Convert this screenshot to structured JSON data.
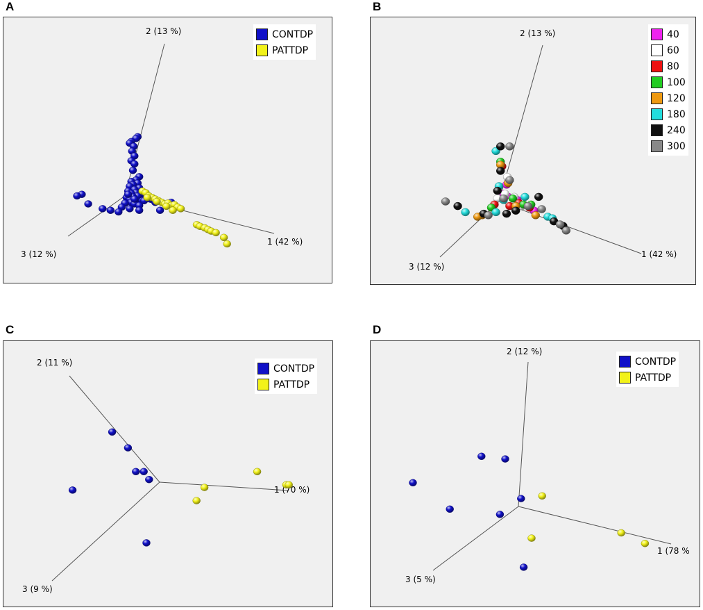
{
  "chart_data": [
    {
      "type": "scatter",
      "panel": "A",
      "title": "",
      "axes": [
        {
          "id": "1",
          "label": "1 (42 %)"
        },
        {
          "id": "2",
          "label": "2 (13 %)"
        },
        {
          "id": "3",
          "label": "3 (12 %)"
        }
      ],
      "legend": [
        {
          "name": "CONTDP",
          "color": "#1010c8"
        },
        {
          "name": "PATTDP",
          "color": "#f2f21a"
        }
      ],
      "series": [
        {
          "name": "CONTDP",
          "color": "#1010c8",
          "points": [
            [
              0.8,
              -3.7
            ],
            [
              0.7,
              -3.6
            ],
            [
              0.4,
              -3.4
            ],
            [
              0.3,
              -3.3
            ],
            [
              0.55,
              -3.1
            ],
            [
              0.45,
              -2.8
            ],
            [
              0.6,
              -2.5
            ],
            [
              0.4,
              -2.2
            ],
            [
              0.6,
              -2.0
            ],
            [
              0.5,
              -1.6
            ],
            [
              0.9,
              -1.2
            ],
            [
              0.7,
              -1.0
            ],
            [
              0.4,
              -0.9
            ],
            [
              0.8,
              -0.8
            ],
            [
              0.5,
              -0.7
            ],
            [
              0.3,
              -0.6
            ],
            [
              0.9,
              -0.5
            ],
            [
              0.6,
              -0.4
            ],
            [
              0.2,
              -0.3
            ],
            [
              0.7,
              -0.2
            ],
            [
              0.4,
              -0.15
            ],
            [
              1.0,
              -0.1
            ],
            [
              0.8,
              0.0
            ],
            [
              0.5,
              0.05
            ],
            [
              0.1,
              0.1
            ],
            [
              0.3,
              0.2
            ],
            [
              0.7,
              0.25
            ],
            [
              1.1,
              0.3
            ],
            [
              0.4,
              0.4
            ],
            [
              0.0,
              0.45
            ],
            [
              0.6,
              0.5
            ],
            [
              0.9,
              0.6
            ],
            [
              1.2,
              0.3
            ],
            [
              1.6,
              0.2
            ],
            [
              1.9,
              0.4
            ],
            [
              2.9,
              0.4
            ],
            [
              2.2,
              0.9
            ],
            [
              0.9,
              0.9
            ],
            [
              0.3,
              0.8
            ],
            [
              -0.2,
              0.7
            ],
            [
              -0.4,
              1.0
            ],
            [
              -0.9,
              0.9
            ],
            [
              -1.4,
              0.8
            ],
            [
              -2.3,
              0.5
            ],
            [
              -2.7,
              -0.1
            ],
            [
              -3.0,
              0.0
            ],
            [
              0.6,
              0.2
            ],
            [
              0.2,
              -0.1
            ]
          ]
        },
        {
          "name": "PATTDP",
          "color": "#f2f21a",
          "points": [
            [
              1.1,
              -0.3
            ],
            [
              1.3,
              -0.2
            ],
            [
              1.5,
              0.0
            ],
            [
              1.7,
              0.1
            ],
            [
              1.9,
              0.2
            ],
            [
              2.1,
              0.3
            ],
            [
              2.3,
              0.4
            ],
            [
              2.5,
              0.5
            ],
            [
              2.7,
              0.45
            ],
            [
              2.9,
              0.6
            ],
            [
              3.1,
              0.55
            ],
            [
              3.3,
              0.7
            ],
            [
              3.5,
              0.8
            ],
            [
              1.4,
              0.1
            ],
            [
              2.0,
              0.35
            ],
            [
              2.6,
              0.65
            ],
            [
              3.0,
              0.9
            ],
            [
              4.5,
              1.8
            ],
            [
              4.7,
              1.9
            ],
            [
              5.0,
              2.0
            ],
            [
              5.2,
              2.1
            ],
            [
              5.4,
              2.2
            ],
            [
              5.7,
              2.3
            ],
            [
              6.2,
              2.6
            ],
            [
              6.4,
              3.0
            ]
          ]
        }
      ]
    },
    {
      "type": "scatter",
      "panel": "B",
      "title": "",
      "axes": [
        {
          "id": "1",
          "label": "1 (42 %)"
        },
        {
          "id": "2",
          "label": "2 (13 %)"
        },
        {
          "id": "3",
          "label": "3 (12 %)"
        }
      ],
      "legend": [
        {
          "name": "40",
          "color": "#ee22ee"
        },
        {
          "name": "60",
          "color": "#ffffff"
        },
        {
          "name": "80",
          "color": "#ee1111"
        },
        {
          "name": "100",
          "color": "#22cc22"
        },
        {
          "name": "120",
          "color": "#ee9911"
        },
        {
          "name": "180",
          "color": "#22dddd"
        },
        {
          "name": "240",
          "color": "#111111"
        },
        {
          "name": "300",
          "color": "#888888"
        }
      ],
      "series": [
        {
          "name": "40",
          "color": "#ee22ee",
          "points": [
            [
              0.5,
              -1.1
            ],
            [
              0.6,
              -0.3
            ],
            [
              1.2,
              -0.1
            ],
            [
              1.4,
              0.2
            ],
            [
              2.3,
              0.6
            ],
            [
              0.3,
              -0.5
            ]
          ]
        },
        {
          "name": "60",
          "color": "#ffffff",
          "points": [
            [
              0.55,
              -1.6
            ],
            [
              0.4,
              -0.5
            ],
            [
              0.8,
              0.0
            ],
            [
              1.5,
              0.3
            ],
            [
              -0.1,
              -0.2
            ],
            [
              1.0,
              -0.3
            ]
          ]
        },
        {
          "name": "80",
          "color": "#ee1111",
          "points": [
            [
              0.2,
              -2.3
            ],
            [
              0.7,
              0.3
            ],
            [
              1.3,
              0.1
            ],
            [
              2.0,
              0.4
            ],
            [
              -0.3,
              0.2
            ]
          ]
        },
        {
          "name": "100",
          "color": "#22cc22",
          "points": [
            [
              0.1,
              -2.6
            ],
            [
              0.9,
              -0.2
            ],
            [
              1.6,
              0.2
            ],
            [
              2.1,
              0.2
            ],
            [
              -0.5,
              0.4
            ]
          ]
        },
        {
          "name": "120",
          "color": "#ee9911",
          "points": [
            [
              0.1,
              -2.4
            ],
            [
              0.6,
              -1.2
            ],
            [
              1.1,
              0.3
            ],
            [
              2.4,
              0.9
            ],
            [
              -1.1,
              0.9
            ],
            [
              -1.4,
              1.0
            ]
          ]
        },
        {
          "name": "180",
          "color": "#22dddd",
          "points": [
            [
              -0.2,
              -3.3
            ],
            [
              0.0,
              -1.0
            ],
            [
              0.3,
              -0.1
            ],
            [
              1.7,
              -0.3
            ],
            [
              3.2,
              1.0
            ],
            [
              3.5,
              1.1
            ],
            [
              -0.2,
              0.7
            ],
            [
              -2.2,
              0.7
            ]
          ]
        },
        {
          "name": "240",
          "color": "#111111",
          "points": [
            [
              0.1,
              -3.6
            ],
            [
              0.1,
              -2.0
            ],
            [
              -0.1,
              -0.7
            ],
            [
              1.1,
              0.6
            ],
            [
              2.6,
              -0.3
            ],
            [
              3.6,
              1.3
            ],
            [
              4.2,
              1.6
            ],
            [
              -1.0,
              0.8
            ],
            [
              -2.7,
              0.3
            ],
            [
              0.5,
              0.8
            ]
          ]
        },
        {
          "name": "300",
          "color": "#888888",
          "points": [
            [
              0.7,
              -3.6
            ],
            [
              0.7,
              -1.4
            ],
            [
              0.3,
              -0.2
            ],
            [
              1.9,
              0.3
            ],
            [
              2.8,
              0.5
            ],
            [
              4.0,
              1.5
            ],
            [
              4.4,
              1.9
            ],
            [
              -0.7,
              0.9
            ],
            [
              -3.5,
              0.0
            ]
          ]
        }
      ]
    },
    {
      "type": "scatter",
      "panel": "C",
      "title": "",
      "axes": [
        {
          "id": "1",
          "label": "1 (70 %)"
        },
        {
          "id": "2",
          "label": "2 (11 %)"
        },
        {
          "id": "3",
          "label": "3 (9 %)"
        }
      ],
      "legend": [
        {
          "name": "CONTDP",
          "color": "#1010c8"
        },
        {
          "name": "PATTDP",
          "color": "#f2f21a"
        }
      ],
      "series": [
        {
          "name": "CONTDP",
          "color": "#1010c8",
          "points": [
            [
              -1.8,
              -1.9
            ],
            [
              -1.2,
              -1.3
            ],
            [
              -0.9,
              -0.4
            ],
            [
              -0.6,
              -0.4
            ],
            [
              -0.4,
              -0.1
            ],
            [
              -3.3,
              0.3
            ],
            [
              -0.5,
              2.3
            ]
          ]
        },
        {
          "name": "PATTDP",
          "color": "#f2f21a",
          "points": [
            [
              1.7,
              0.2
            ],
            [
              1.4,
              0.7
            ],
            [
              3.7,
              -0.4
            ],
            [
              4.8,
              0.1
            ],
            [
              4.9,
              0.1
            ]
          ]
        }
      ]
    },
    {
      "type": "scatter",
      "panel": "D",
      "title": "",
      "axes": [
        {
          "id": "1",
          "label": "1 (78 %"
        },
        {
          "id": "2",
          "label": "2 (12 %)"
        },
        {
          "id": "3",
          "label": "3 (5 %)"
        }
      ],
      "legend": [
        {
          "name": "CONTDP",
          "color": "#1010c8"
        },
        {
          "name": "PATTDP",
          "color": "#f2f21a"
        }
      ],
      "series": [
        {
          "name": "CONTDP",
          "color": "#1010c8",
          "points": [
            [
              -1.4,
              -1.9
            ],
            [
              -0.5,
              -1.8
            ],
            [
              -4.0,
              -0.9
            ],
            [
              0.1,
              -0.3
            ],
            [
              -2.6,
              0.1
            ],
            [
              -0.7,
              0.3
            ],
            [
              0.2,
              2.3
            ]
          ]
        },
        {
          "name": "PATTDP",
          "color": "#f2f21a",
          "points": [
            [
              0.9,
              -0.4
            ],
            [
              0.5,
              1.2
            ],
            [
              3.9,
              1.0
            ],
            [
              4.8,
              1.4
            ]
          ]
        }
      ]
    }
  ]
}
